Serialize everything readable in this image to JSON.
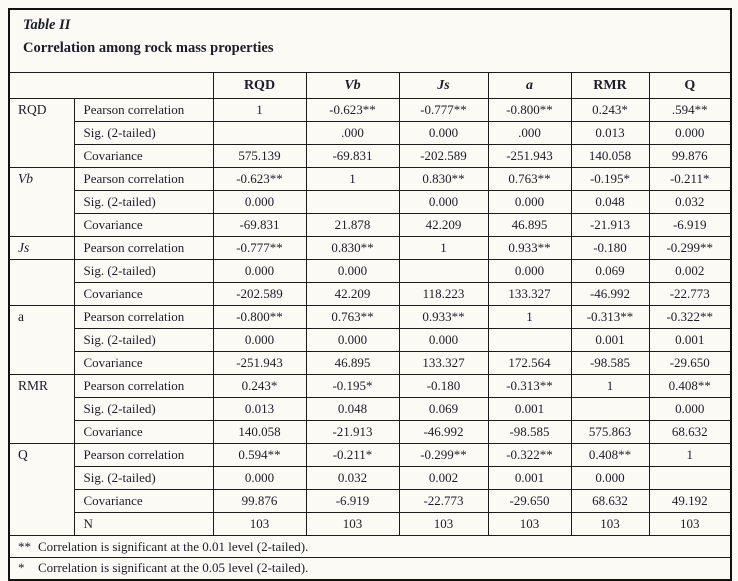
{
  "title": {
    "line1": "Table II",
    "line2": "Correlation among rock mass properties"
  },
  "table": {
    "column_headers": [
      {
        "label": "RQD",
        "italic": false
      },
      {
        "label": "Vb",
        "italic": true
      },
      {
        "label": "Js",
        "italic": true
      },
      {
        "label": "a",
        "italic": true
      },
      {
        "label": "RMR",
        "italic": false
      },
      {
        "label": "Q",
        "italic": false
      }
    ],
    "groups": [
      {
        "label_cells": [
          {
            "text": "RQD",
            "italic": false,
            "rowspan": 3
          }
        ],
        "rows": [
          {
            "stat": "Pearson correlation",
            "values": [
              "1",
              "-0.623**",
              "-0.777**",
              "-0.800**",
              "0.243*",
              ".594**"
            ]
          },
          {
            "stat": "Sig. (2-tailed)",
            "values": [
              "",
              ".000",
              "0.000",
              ".000",
              "0.013",
              "0.000"
            ]
          },
          {
            "stat": "Covariance",
            "values": [
              "575.139",
              "-69.831",
              "-202.589",
              "-251.943",
              "140.058",
              "99.876"
            ]
          }
        ]
      },
      {
        "label_cells": [
          {
            "text": "Vb",
            "italic": true,
            "rowspan": 3
          }
        ],
        "rows": [
          {
            "stat": "Pearson correlation",
            "values": [
              "-0.623**",
              "1",
              "0.830**",
              "0.763**",
              "-0.195*",
              "-0.211*"
            ]
          },
          {
            "stat": "Sig. (2-tailed)",
            "values": [
              "0.000",
              "",
              "0.000",
              "0.000",
              "0.048",
              "0.032"
            ]
          },
          {
            "stat": "Covariance",
            "values": [
              "-69.831",
              "21.878",
              "42.209",
              "46.895",
              "-21.913",
              "-6.919"
            ]
          }
        ]
      },
      {
        "label_cells": [
          {
            "text": "Js",
            "italic": true,
            "rowspan": 1
          },
          {
            "text": "",
            "italic": false,
            "rowspan": 2
          }
        ],
        "rows": [
          {
            "stat": "Pearson correlation",
            "values": [
              "-0.777**",
              "0.830**",
              "1",
              "0.933**",
              "-0.180",
              "-0.299**"
            ]
          },
          {
            "stat": "Sig. (2-tailed)",
            "values": [
              "0.000",
              "0.000",
              "",
              "0.000",
              "0.069",
              "0.002"
            ]
          },
          {
            "stat": "Covariance",
            "values": [
              "-202.589",
              "42.209",
              "118.223",
              "133.327",
              "-46.992",
              "-22.773"
            ]
          }
        ]
      },
      {
        "label_cells": [
          {
            "text": "a",
            "italic": false,
            "rowspan": 3
          }
        ],
        "rows": [
          {
            "stat": "Pearson correlation",
            "values": [
              "-0.800**",
              "0.763**",
              "0.933**",
              "1",
              "-0.313**",
              "-0.322**"
            ]
          },
          {
            "stat": "Sig. (2-tailed)",
            "values": [
              "0.000",
              "0.000",
              "0.000",
              "",
              "0.001",
              "0.001"
            ]
          },
          {
            "stat": "Covariance",
            "values": [
              "-251.943",
              "46.895",
              "133.327",
              "172.564",
              "-98.585",
              "-29.650"
            ]
          }
        ]
      },
      {
        "label_cells": [
          {
            "text": "RMR",
            "italic": false,
            "rowspan": 3
          }
        ],
        "rows": [
          {
            "stat": "Pearson correlation",
            "values": [
              "0.243*",
              "-0.195*",
              "-0.180",
              "-0.313**",
              "1",
              "0.408**"
            ]
          },
          {
            "stat": "Sig. (2-tailed)",
            "values": [
              "0.013",
              "0.048",
              "0.069",
              "0.001",
              "",
              "0.000"
            ]
          },
          {
            "stat": "Covariance",
            "values": [
              "140.058",
              "-21.913",
              "-46.992",
              "-98.585",
              "575.863",
              "68.632"
            ]
          }
        ]
      },
      {
        "label_cells": [
          {
            "text": "Q",
            "italic": false,
            "rowspan": 4
          }
        ],
        "rows": [
          {
            "stat": "Pearson correlation",
            "values": [
              "0.594**",
              "-0.211*",
              "-0.299**",
              "-0.322**",
              "0.408**",
              "1"
            ]
          },
          {
            "stat": "Sig. (2-tailed)",
            "values": [
              "0.000",
              "0.032",
              "0.002",
              "0.001",
              "0.000",
              ""
            ]
          },
          {
            "stat": "Covariance",
            "values": [
              "99.876",
              "-6.919",
              "-22.773",
              "-29.650",
              "68.632",
              "49.192"
            ]
          },
          {
            "stat": "N",
            "values": [
              "103",
              "103",
              "103",
              "103",
              "103",
              "103"
            ]
          }
        ]
      }
    ],
    "footnotes": [
      {
        "marker": "**",
        "text": "Correlation is significant at the 0.01 level (2-tailed)."
      },
      {
        "marker": "*",
        "text": "Correlation is significant at the 0.05 level (2-tailed)."
      }
    ]
  }
}
